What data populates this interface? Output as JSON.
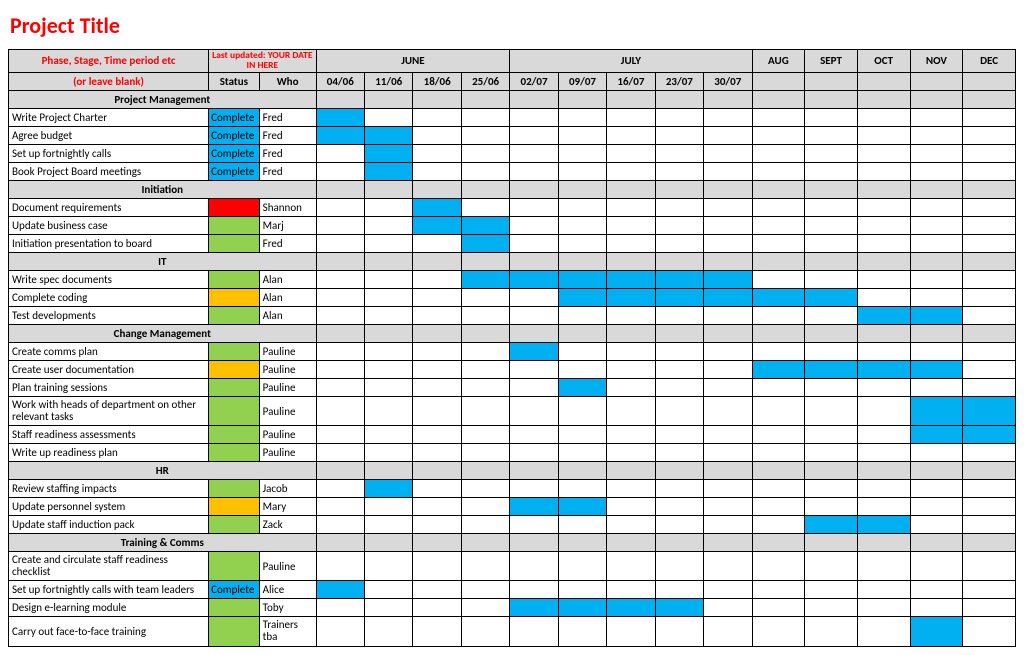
{
  "title": "Project Title",
  "colors": {
    "headerGrey": "#d9d9d9",
    "barBlue": "#00b0f0",
    "statusGreen": "#92d050",
    "statusOrange": "#ffc000",
    "statusRed": "#ff0000",
    "titleRed": "#ff0000",
    "border": "#000000",
    "background": "#ffffff"
  },
  "headers": {
    "phaseLabel": "Phase, Stage, Time period etc",
    "blankLabel": "(or leave blank)",
    "lastUpdated": "Last updated: YOUR DATE IN HERE",
    "statusLabel": "Status",
    "whoLabel": "Who"
  },
  "timeline": {
    "groups": [
      {
        "label": "JUNE",
        "span": 4
      },
      {
        "label": "JULY",
        "span": 5
      },
      {
        "label": "AUG",
        "span": 1
      },
      {
        "label": "SEPT",
        "span": 1
      },
      {
        "label": "OCT",
        "span": 1
      },
      {
        "label": "NOV",
        "span": 1
      },
      {
        "label": "DEC",
        "span": 1
      }
    ],
    "columns": [
      "04/06",
      "11/06",
      "18/06",
      "25/06",
      "02/07",
      "09/07",
      "16/07",
      "23/07",
      "30/07",
      "",
      "",
      "",
      "",
      ""
    ]
  },
  "statusLegend": {
    "complete": {
      "label": "Complete",
      "color": "#00b0f0"
    },
    "green": {
      "label": "",
      "color": "#92d050"
    },
    "orange": {
      "label": "",
      "color": "#ffc000"
    },
    "red": {
      "label": "",
      "color": "#ff0000"
    }
  },
  "rows": [
    {
      "type": "section",
      "label": "Project Management"
    },
    {
      "type": "task",
      "label": "Write Project Charter",
      "status": "complete",
      "who": "Fred",
      "bars": [
        0
      ]
    },
    {
      "type": "task",
      "label": "Agree budget",
      "status": "complete",
      "who": "Fred",
      "bars": [
        0,
        1
      ]
    },
    {
      "type": "task",
      "label": "Set up fortnightly calls",
      "status": "complete",
      "who": "Fred",
      "bars": [
        1
      ]
    },
    {
      "type": "task",
      "label": "Book Project Board meetings",
      "status": "complete",
      "who": "Fred",
      "bars": [
        1
      ]
    },
    {
      "type": "section",
      "label": "Initiation"
    },
    {
      "type": "task",
      "label": "Document requirements",
      "status": "red",
      "who": "Shannon",
      "bars": [
        2
      ]
    },
    {
      "type": "task",
      "label": "Update business case",
      "status": "green",
      "who": "Marj",
      "bars": [
        2,
        3
      ]
    },
    {
      "type": "task",
      "label": "Initiation presentation to board",
      "status": "green",
      "who": "Fred",
      "bars": [
        3
      ]
    },
    {
      "type": "section",
      "label": "IT"
    },
    {
      "type": "task",
      "label": "Write spec documents",
      "status": "green",
      "who": "Alan",
      "bars": [
        3,
        4,
        5,
        6,
        7,
        8
      ]
    },
    {
      "type": "task",
      "label": "Complete coding",
      "status": "orange",
      "who": "Alan",
      "bars": [
        5,
        6,
        7,
        8,
        9,
        10
      ]
    },
    {
      "type": "task",
      "label": "Test developments",
      "status": "green",
      "who": "Alan",
      "bars": [
        11,
        12
      ]
    },
    {
      "type": "section",
      "label": "Change Management"
    },
    {
      "type": "task",
      "label": "Create comms plan",
      "status": "green",
      "who": "Pauline",
      "bars": [
        4
      ]
    },
    {
      "type": "task",
      "label": "Create user documentation",
      "status": "orange",
      "who": "Pauline",
      "bars": [
        9,
        10,
        11,
        12
      ]
    },
    {
      "type": "task",
      "label": "Plan training sessions",
      "status": "green",
      "who": "Pauline",
      "bars": [
        5
      ]
    },
    {
      "type": "task",
      "label": "Work with heads of department on other relevant tasks",
      "wrap": true,
      "status": "green",
      "who": "Pauline",
      "bars": [
        12,
        13
      ]
    },
    {
      "type": "task",
      "label": "Staff readiness assessments",
      "status": "green",
      "who": "Pauline",
      "bars": [
        12,
        13
      ]
    },
    {
      "type": "task",
      "label": "Write up readiness plan",
      "status": "green",
      "who": "Pauline",
      "bars": []
    },
    {
      "type": "section",
      "label": "HR"
    },
    {
      "type": "task",
      "label": "Review staffing impacts",
      "status": "green",
      "who": "Jacob",
      "bars": [
        1
      ]
    },
    {
      "type": "task",
      "label": "Update personnel system",
      "status": "orange",
      "who": "Mary",
      "bars": [
        4,
        5
      ]
    },
    {
      "type": "task",
      "label": "Update staff induction pack",
      "status": "green",
      "who": "Zack",
      "bars": [
        10,
        11
      ]
    },
    {
      "type": "section",
      "label": "Training & Comms"
    },
    {
      "type": "task",
      "label": "Create and circulate staff readiness checklist",
      "wrap": true,
      "status": "green",
      "who": "Pauline",
      "bars": []
    },
    {
      "type": "task",
      "label": "Set up fortnightly calls with team leaders",
      "status": "complete",
      "who": "Alice",
      "bars": [
        0
      ]
    },
    {
      "type": "task",
      "label": "Design e-learning module",
      "status": "green",
      "who": "Toby",
      "bars": [
        4,
        5,
        6,
        7
      ]
    },
    {
      "type": "task",
      "label": "Carry out face-to-face training",
      "status": "green",
      "who": "Trainers tba",
      "whoWrap": true,
      "bars": [
        12
      ]
    }
  ]
}
